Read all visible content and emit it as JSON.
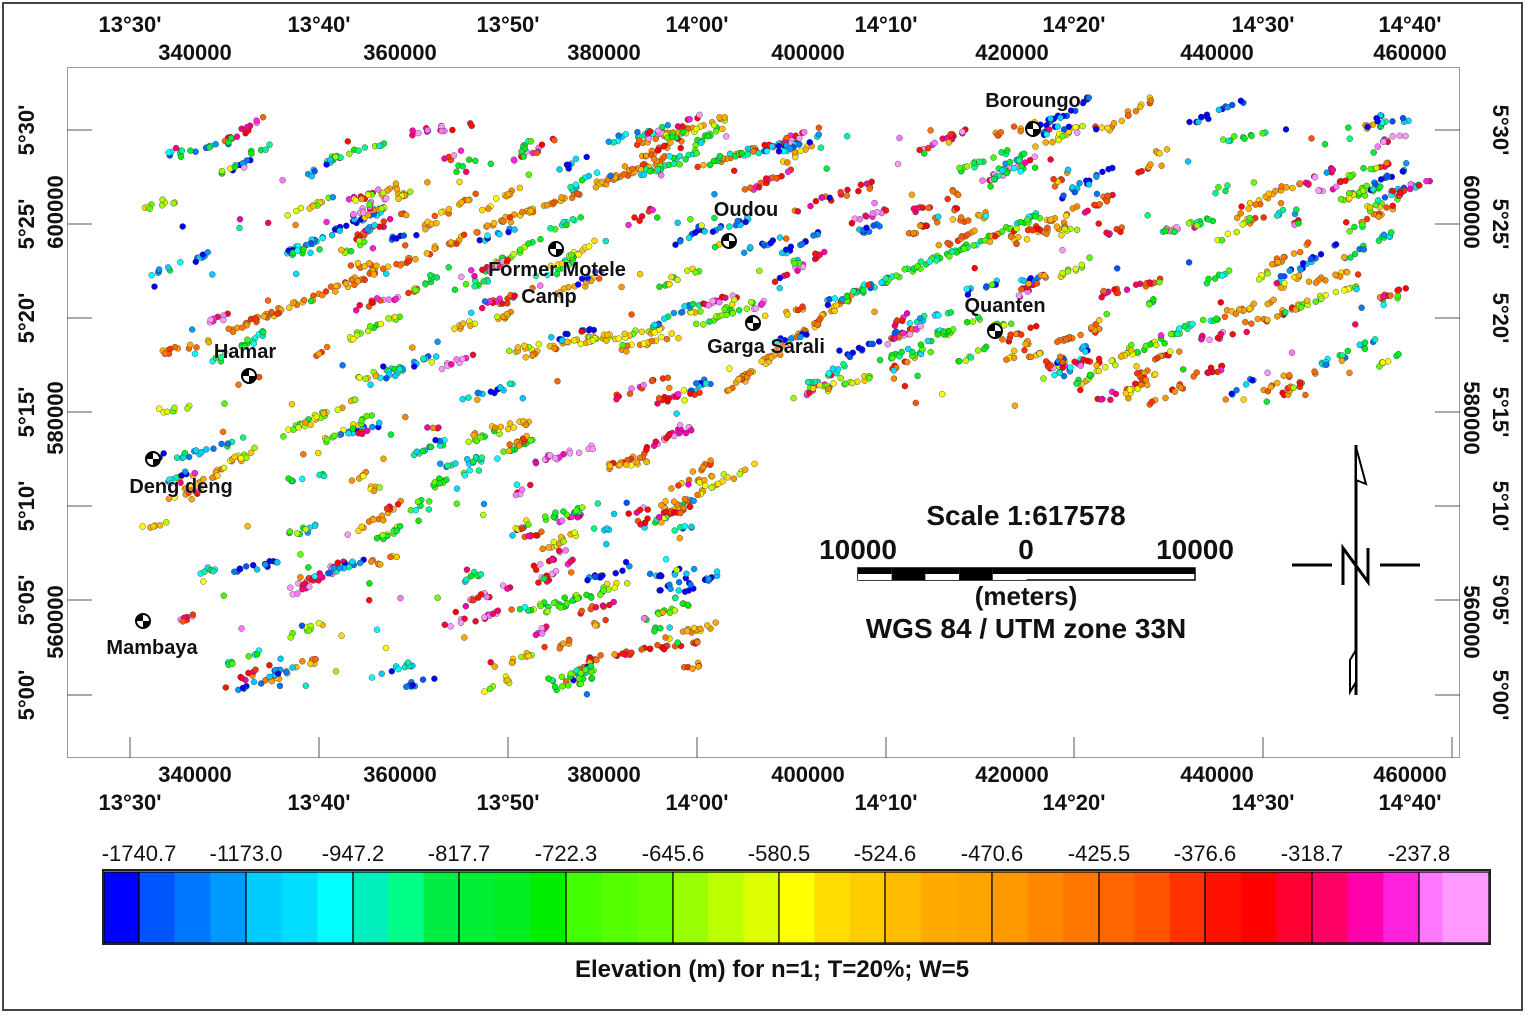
{
  "map": {
    "top_longitude_labels": [
      "13°30'",
      "13°40'",
      "13°50'",
      "14°00'",
      "14°10'",
      "14°20'",
      "14°30'",
      "14°40'"
    ],
    "top_easting_labels": [
      "340000",
      "360000",
      "380000",
      "400000",
      "420000",
      "440000",
      "460000"
    ],
    "bottom_easting_labels": [
      "340000",
      "360000",
      "380000",
      "400000",
      "420000",
      "440000",
      "460000"
    ],
    "bottom_longitude_labels": [
      "13°30'",
      "13°40'",
      "13°50'",
      "14°00'",
      "14°10'",
      "14°20'",
      "14°30'",
      "14°40'"
    ],
    "left_latitude_labels": [
      "5°30'",
      "5°25'",
      "5°20'",
      "5°15'",
      "5°10'",
      "5°05'",
      "5°00'"
    ],
    "left_northing_labels": [
      "600000",
      "580000",
      "560000"
    ],
    "right_latitude_labels": [
      "5°30'",
      "5°25'",
      "5°20'",
      "5°15'",
      "5°10'",
      "5°05'",
      "5°00'"
    ],
    "right_northing_labels": [
      "600000",
      "580000",
      "560000"
    ],
    "towns": [
      {
        "name": "Boroungo"
      },
      {
        "name": "Oudou"
      },
      {
        "name": "Former Motele"
      },
      {
        "name": "Camp"
      },
      {
        "name": "Garga Sarali"
      },
      {
        "name": "Quanten"
      },
      {
        "name": "Hamar"
      },
      {
        "name": "Deng deng"
      },
      {
        "name": "Mambaya"
      }
    ],
    "scale": {
      "title": "Scale 1:617578",
      "left": "10000",
      "center": "0",
      "right": "10000",
      "units": "(meters)",
      "projection": "WGS 84 / UTM zone 33N"
    }
  },
  "colorbar": {
    "labels": [
      "-1740.7",
      "-1173.0",
      "-947.2",
      "-817.7",
      "-722.3",
      "-645.6",
      "-580.5",
      "-524.6",
      "-470.6",
      "-425.5",
      "-376.6",
      "-318.7",
      "-237.8"
    ],
    "title": "Elevation (m)  for n=1; T=20%; W=5",
    "colors": [
      "#0000ff",
      "#0055ff",
      "#0077ff",
      "#0099ff",
      "#00ccff",
      "#00ddff",
      "#00ffff",
      "#00eebb",
      "#00ff88",
      "#00ee44",
      "#00ee33",
      "#00ee22",
      "#00ee00",
      "#44ff00",
      "#55ff00",
      "#66ff00",
      "#99ff00",
      "#bbff00",
      "#ddff00",
      "#ffff00",
      "#ffdd00",
      "#ffcc00",
      "#ffbb00",
      "#ffaa00",
      "#ffa500",
      "#ff9900",
      "#ff8800",
      "#ff7700",
      "#ff6600",
      "#ff5500",
      "#ff3300",
      "#ff1100",
      "#ff0000",
      "#ff0033",
      "#ff0066",
      "#ff00aa",
      "#ff22dd",
      "#ff77ff",
      "#ff99ff"
    ]
  }
}
